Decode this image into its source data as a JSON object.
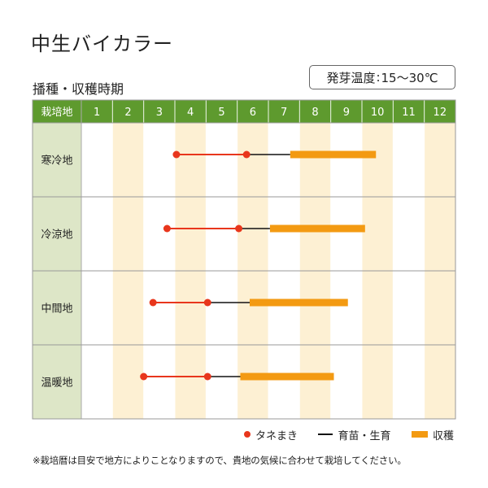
{
  "title": "中生バイカラー",
  "temperature": {
    "label": "発芽温度",
    "separator": ":",
    "value": "15～30℃"
  },
  "subtitle": "播種・収穫時期",
  "note": "※栽培暦は目安で地方によりことなりますので、貴地の気候に合わせて栽培してください。",
  "colors": {
    "header": "#5e9a2e",
    "region_cell": "#dde6c7",
    "stripe": "#fdf0d3",
    "sowing": "#e8361c",
    "growing": "#111111",
    "harvest": "#f39a12",
    "border": "#999999"
  },
  "legend": [
    {
      "key": "sowing",
      "label": "タネまき"
    },
    {
      "key": "growing",
      "label": "育苗・生育"
    },
    {
      "key": "harvest",
      "label": "収穫"
    }
  ],
  "chart_data": {
    "type": "table",
    "title": "播種・収穫時期",
    "header_label": "栽培地",
    "months": [
      "1",
      "2",
      "3",
      "4",
      "5",
      "6",
      "7",
      "8",
      "9",
      "10",
      "11",
      "12"
    ],
    "rows": [
      {
        "region": "寒冷地",
        "sowing_start": 4.05,
        "sowing_end": 6.3,
        "growing_end": 7.7,
        "harvest_end": 10.45
      },
      {
        "region": "冷涼地",
        "sowing_start": 3.75,
        "sowing_end": 6.05,
        "growing_end": 7.05,
        "harvest_end": 10.1
      },
      {
        "region": "中間地",
        "sowing_start": 3.3,
        "sowing_end": 5.05,
        "growing_end": 6.4,
        "harvest_end": 9.55
      },
      {
        "region": "温暖地",
        "sowing_start": 3.0,
        "sowing_end": 5.05,
        "growing_end": 6.1,
        "harvest_end": 9.1
      }
    ]
  }
}
